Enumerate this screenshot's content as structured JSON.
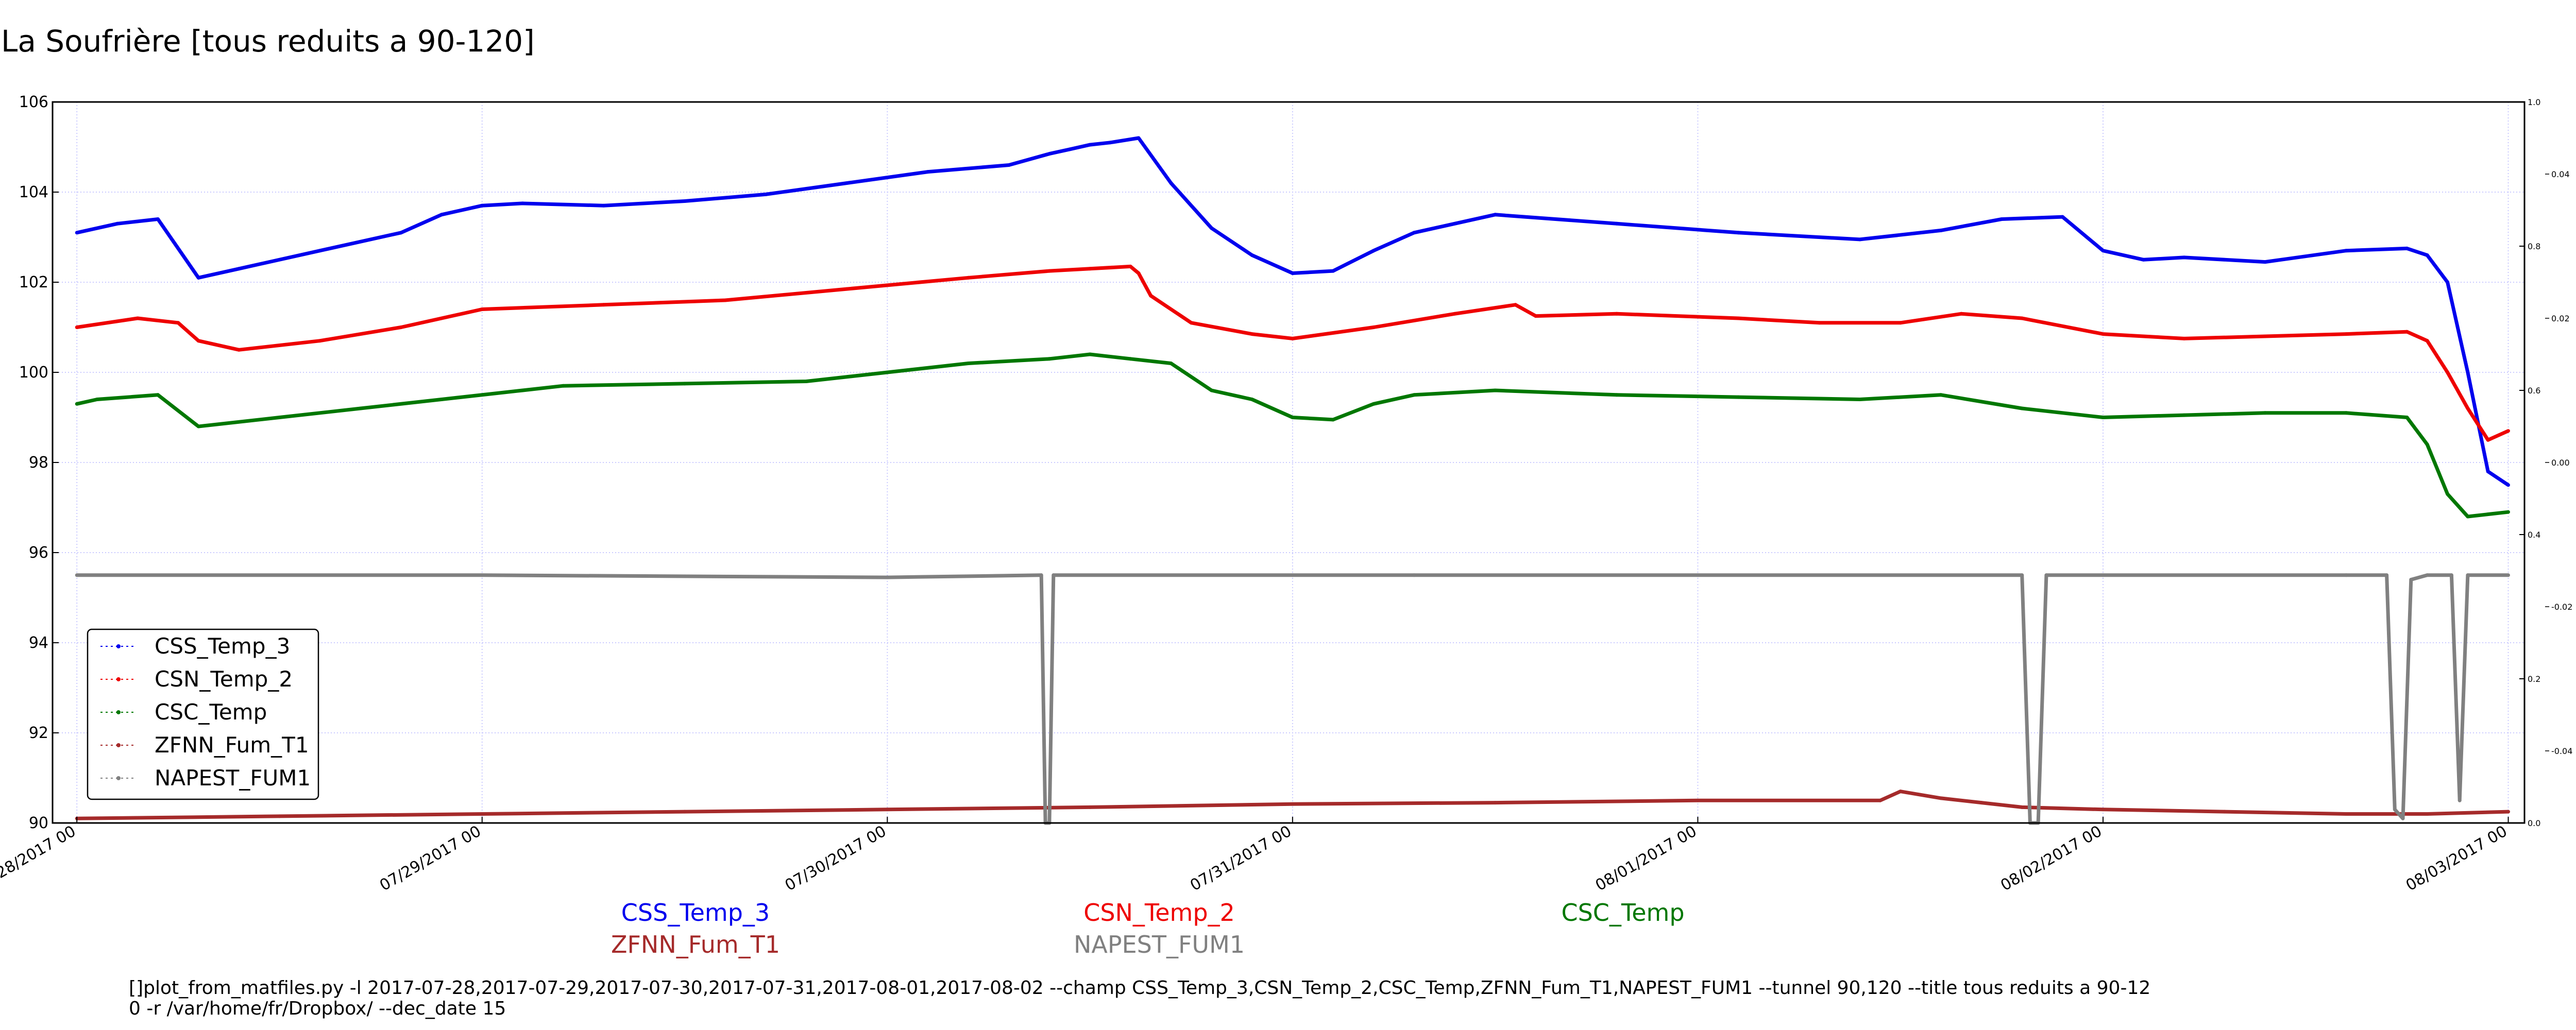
{
  "title": "La Soufrière [tous reduits a 90-120]",
  "chart_data": {
    "type": "line",
    "xlabel": "",
    "ylabel": "",
    "x_ticks": [
      "07/28/2017 00",
      "07/29/2017 00",
      "07/30/2017 00",
      "07/31/2017 00",
      "08/01/2017 00",
      "08/02/2017 00",
      "08/03/2017 00"
    ],
    "xlim": [
      -0.06,
      6.04
    ],
    "ylim": [
      90,
      106
    ],
    "y_ticks": [
      90,
      92,
      94,
      96,
      98,
      100,
      102,
      104,
      106
    ],
    "right_axis_a": {
      "ticks": [
        0.0,
        0.2,
        0.4,
        0.6,
        0.8,
        1.0
      ],
      "labels": [
        "0.0",
        "0.2",
        "0.4",
        "0.6",
        "0.8",
        "1.0"
      ]
    },
    "right_axis_b": {
      "ticks": [
        0.04,
        0.02,
        0.0,
        -0.02,
        -0.04
      ],
      "labels": [
        "0.04",
        "0.02",
        "0.00",
        "-0.02",
        "-0.04"
      ]
    },
    "grid": true,
    "legend_position": "lower-left",
    "series": [
      {
        "name": "CSS_Temp_3",
        "color": "#0000ee",
        "x": [
          0.0,
          0.1,
          0.2,
          0.3,
          0.4,
          0.6,
          0.8,
          0.9,
          1.0,
          1.1,
          1.3,
          1.5,
          1.7,
          1.9,
          2.1,
          2.3,
          2.4,
          2.45,
          2.5,
          2.55,
          2.62,
          2.7,
          2.8,
          2.9,
          3.0,
          3.1,
          3.2,
          3.3,
          3.5,
          3.8,
          4.1,
          4.4,
          4.6,
          4.75,
          4.9,
          5.0,
          5.1,
          5.2,
          5.4,
          5.6,
          5.75,
          5.8,
          5.85,
          5.9,
          5.95,
          6.0
        ],
        "y": [
          103.1,
          103.3,
          103.4,
          102.1,
          102.3,
          102.7,
          103.1,
          103.5,
          103.7,
          103.75,
          103.7,
          103.8,
          103.95,
          104.2,
          104.45,
          104.6,
          104.85,
          104.95,
          105.05,
          105.1,
          105.2,
          104.2,
          103.2,
          102.6,
          102.2,
          102.25,
          102.7,
          103.1,
          103.5,
          103.3,
          103.1,
          102.95,
          103.15,
          103.4,
          103.45,
          102.7,
          102.5,
          102.55,
          102.45,
          102.7,
          102.75,
          102.6,
          102.0,
          100.0,
          97.8,
          97.5
        ]
      },
      {
        "name": "CSN_Temp_2",
        "color": "#ee0000",
        "x": [
          0.0,
          0.15,
          0.25,
          0.3,
          0.4,
          0.6,
          0.8,
          1.0,
          1.3,
          1.6,
          1.9,
          2.2,
          2.4,
          2.5,
          2.6,
          2.62,
          2.65,
          2.75,
          2.9,
          3.0,
          3.2,
          3.4,
          3.55,
          3.6,
          3.8,
          4.1,
          4.3,
          4.5,
          4.65,
          4.8,
          5.0,
          5.2,
          5.4,
          5.6,
          5.75,
          5.8,
          5.85,
          5.9,
          5.95,
          6.0
        ],
        "y": [
          101.0,
          101.2,
          101.1,
          100.7,
          100.5,
          100.7,
          101.0,
          101.4,
          101.5,
          101.6,
          101.85,
          102.1,
          102.25,
          102.3,
          102.35,
          102.2,
          101.7,
          101.1,
          100.85,
          100.75,
          101.0,
          101.3,
          101.5,
          101.25,
          101.3,
          101.2,
          101.1,
          101.1,
          101.3,
          101.2,
          100.85,
          100.75,
          100.8,
          100.85,
          100.9,
          100.7,
          100.0,
          99.2,
          98.5,
          98.7
        ]
      },
      {
        "name": "CSC_Temp",
        "color": "#007700",
        "x": [
          0.0,
          0.05,
          0.2,
          0.3,
          0.5,
          0.7,
          0.9,
          1.2,
          1.5,
          1.8,
          2.0,
          2.2,
          2.4,
          2.5,
          2.6,
          2.7,
          2.8,
          2.9,
          3.0,
          3.1,
          3.2,
          3.3,
          3.5,
          3.8,
          4.1,
          4.4,
          4.6,
          4.8,
          5.0,
          5.2,
          5.4,
          5.6,
          5.75,
          5.8,
          5.85,
          5.9,
          6.0
        ],
        "y": [
          99.3,
          99.4,
          99.5,
          98.8,
          99.0,
          99.2,
          99.4,
          99.7,
          99.75,
          99.8,
          100.0,
          100.2,
          100.3,
          100.4,
          100.3,
          100.2,
          99.6,
          99.4,
          99.0,
          98.95,
          99.3,
          99.5,
          99.6,
          99.5,
          99.45,
          99.4,
          99.5,
          99.2,
          99.0,
          99.05,
          99.1,
          99.1,
          99.0,
          98.4,
          97.3,
          96.8,
          96.9
        ]
      },
      {
        "name": "ZFNN_Fum_T1",
        "color": "#a52a2a",
        "x": [
          0.0,
          0.5,
          1.0,
          1.5,
          2.0,
          2.5,
          3.0,
          3.5,
          4.0,
          4.45,
          4.5,
          4.6,
          4.7,
          4.8,
          5.0,
          5.3,
          5.6,
          5.8,
          6.0
        ],
        "y": [
          90.1,
          90.15,
          90.2,
          90.25,
          90.3,
          90.35,
          90.42,
          90.45,
          90.5,
          90.5,
          90.7,
          90.55,
          90.45,
          90.35,
          90.3,
          90.25,
          90.2,
          90.2,
          90.25
        ]
      },
      {
        "name": "NAPEST_FUM1",
        "color": "#808080",
        "x": [
          0.0,
          1.0,
          2.0,
          2.38,
          2.39,
          2.4,
          2.41,
          3.0,
          3.3,
          4.0,
          4.8,
          4.82,
          4.84,
          4.86,
          5.0,
          5.6,
          5.7,
          5.72,
          5.74,
          5.76,
          5.8,
          5.86,
          5.88,
          5.9,
          6.0
        ],
        "y": [
          95.5,
          95.5,
          95.45,
          95.5,
          90.0,
          90.0,
          95.5,
          95.5,
          95.5,
          95.5,
          95.5,
          90.0,
          90.0,
          95.5,
          95.5,
          95.5,
          95.5,
          90.3,
          90.1,
          95.4,
          95.5,
          95.5,
          90.5,
          95.5,
          95.5
        ]
      }
    ]
  },
  "bottom_labels": {
    "css": "CSS_Temp_3",
    "csn": "CSN_Temp_2",
    "csc": "CSC_Temp",
    "zfnn": "ZFNN_Fum_T1",
    "napest": "NAPEST_FUM1"
  },
  "command_line_1": "[]plot_from_matfiles.py -l 2017-07-28,2017-07-29,2017-07-30,2017-07-31,2017-08-01,2017-08-02 --champ CSS_Temp_3,CSN_Temp_2,CSC_Temp,ZFNN_Fum_T1,NAPEST_FUM1 --tunnel 90,120 --title tous reduits a 90-12",
  "command_line_2": "0 -r /var/home/fr/Dropbox/ --dec_date 15"
}
